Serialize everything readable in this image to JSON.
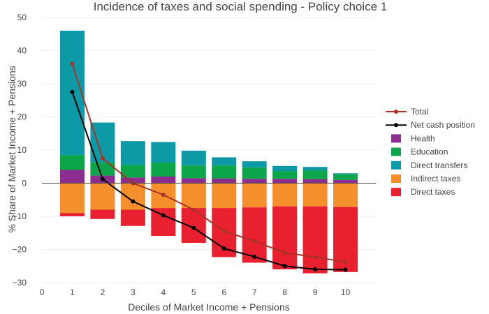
{
  "chart_data": {
    "type": "bar",
    "title": "Incidence of taxes and social spending - Policy choice 1",
    "xlabel": "Deciles of Market Income + Pensions",
    "ylabel": "% Share of Market Income + Pensions",
    "ylim": [
      -30,
      50
    ],
    "yticks": [
      -30,
      -20,
      -10,
      0,
      10,
      20,
      30,
      40,
      50
    ],
    "ytick_labels": [
      "−30",
      "−20",
      "−10",
      "0",
      "10",
      "20",
      "30",
      "40",
      "50"
    ],
    "xlim": [
      0,
      11
    ],
    "xticks": [
      0,
      1,
      2,
      3,
      4,
      5,
      6,
      7,
      8,
      9,
      10
    ],
    "xtick_labels": [
      "0",
      "1",
      "2",
      "3",
      "4",
      "5",
      "6",
      "7",
      "8",
      "9",
      "10"
    ],
    "categories": [
      1,
      2,
      3,
      4,
      5,
      6,
      7,
      8,
      9,
      10
    ],
    "stacking": "relative",
    "grid": true,
    "legend_position": "right",
    "series": [
      {
        "name": "Total",
        "kind": "line",
        "color": "#A93226",
        "values": [
          36,
          7.5,
          0,
          -3.5,
          -8,
          -14.5,
          -17.5,
          -21,
          -22.3,
          -23.8
        ]
      },
      {
        "name": "Net cash position",
        "kind": "line",
        "color": "#000000",
        "values": [
          27.5,
          1.2,
          -5.5,
          -9.7,
          -13.5,
          -19.7,
          -22.2,
          -25,
          -26,
          -26.1
        ]
      },
      {
        "name": "Health",
        "kind": "bar",
        "color": "#8B2E8F",
        "values": [
          4,
          2.3,
          1.7,
          2,
          1.5,
          1.4,
          1.3,
          1.3,
          1.2,
          1
        ]
      },
      {
        "name": "Education",
        "kind": "bar",
        "color": "#0DA54A",
        "values": [
          4.5,
          4,
          3.8,
          4.2,
          3.8,
          3.9,
          3.4,
          2.3,
          2.6,
          1.7
        ]
      },
      {
        "name": "Direct transfers",
        "kind": "bar",
        "color": "#0E99A6",
        "values": [
          37.5,
          12,
          7.2,
          6.2,
          4.5,
          2.5,
          1.9,
          1.6,
          1.1,
          0.3
        ]
      },
      {
        "name": "Indirect taxes",
        "kind": "bar",
        "color": "#F48F2C",
        "values": [
          -9,
          -8,
          -8,
          -7.5,
          -7.5,
          -7.5,
          -7.3,
          -7,
          -7,
          -7.2
        ]
      },
      {
        "name": "Direct taxes",
        "kind": "bar",
        "color": "#E8202F",
        "values": [
          -1,
          -2.8,
          -4.9,
          -8.4,
          -10.5,
          -14.8,
          -16.7,
          -19,
          -20.2,
          -19.6
        ]
      }
    ]
  }
}
